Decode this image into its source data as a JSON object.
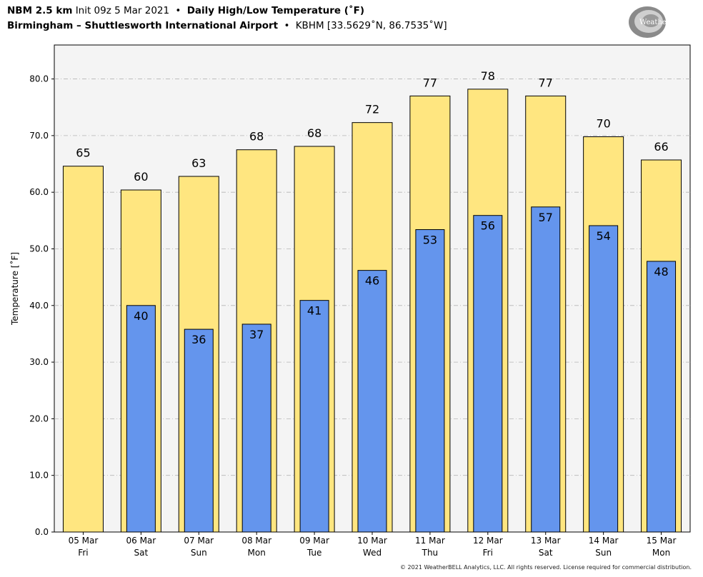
{
  "header": {
    "model": "NBM 2.5 km",
    "init": "Init 09z 5 Mar 2021",
    "product": "Daily High/Low Temperature (˚F)",
    "location": "Birmingham – Shuttlesworth International Airport",
    "station": "KBHM [33.5629˚N, 86.7535˚W]",
    "bullet": "•"
  },
  "logo": {
    "text": "WeatherBELL",
    "colors": {
      "ring": "#8a8a8a",
      "ring_light": "#cfcfcf",
      "text": "#ffffff"
    }
  },
  "footer": {
    "copyright": "© 2021 WeatherBELL Analytics, LLC. All rights reserved. License required for commercial distribution."
  },
  "chart_data": {
    "type": "bar",
    "title": "",
    "xlabel": "",
    "ylabel": "Temperature [˚F]",
    "ylim": [
      0,
      86
    ],
    "yticks": [
      0,
      10,
      20,
      30,
      40,
      50,
      60,
      70,
      80
    ],
    "ytick_labels": [
      "0.0",
      "10.0",
      "20.0",
      "30.0",
      "40.0",
      "50.0",
      "60.0",
      "70.0",
      "80.0"
    ],
    "grid": true,
    "categories": [
      [
        "05 Mar",
        "Fri"
      ],
      [
        "06 Mar",
        "Sat"
      ],
      [
        "07 Mar",
        "Sun"
      ],
      [
        "08 Mar",
        "Mon"
      ],
      [
        "09 Mar",
        "Tue"
      ],
      [
        "10 Mar",
        "Wed"
      ],
      [
        "11 Mar",
        "Thu"
      ],
      [
        "12 Mar",
        "Fri"
      ],
      [
        "13 Mar",
        "Sat"
      ],
      [
        "14 Mar",
        "Sun"
      ],
      [
        "15 Mar",
        "Mon"
      ]
    ],
    "series": [
      {
        "values": [
          64.6,
          60.4,
          62.8,
          67.5,
          68.1,
          72.3,
          77.0,
          78.2,
          77.0,
          69.8,
          65.7
        ],
        "labels": [
          "65",
          "60",
          "63",
          "68",
          "68",
          "72",
          "77",
          "78",
          "77",
          "70",
          "66"
        ],
        "color": "#ffe680"
      },
      {
        "values": [
          null,
          40.0,
          35.8,
          36.7,
          40.9,
          46.2,
          53.4,
          55.9,
          57.4,
          54.1,
          47.8
        ],
        "labels": [
          null,
          "40",
          "36",
          "37",
          "41",
          "46",
          "53",
          "56",
          "57",
          "54",
          "48"
        ],
        "color": "#6495ed"
      }
    ],
    "colors": {
      "plot_background": "#f4f4f4",
      "grid": "#b5b5b5",
      "outline": "#000000"
    }
  }
}
